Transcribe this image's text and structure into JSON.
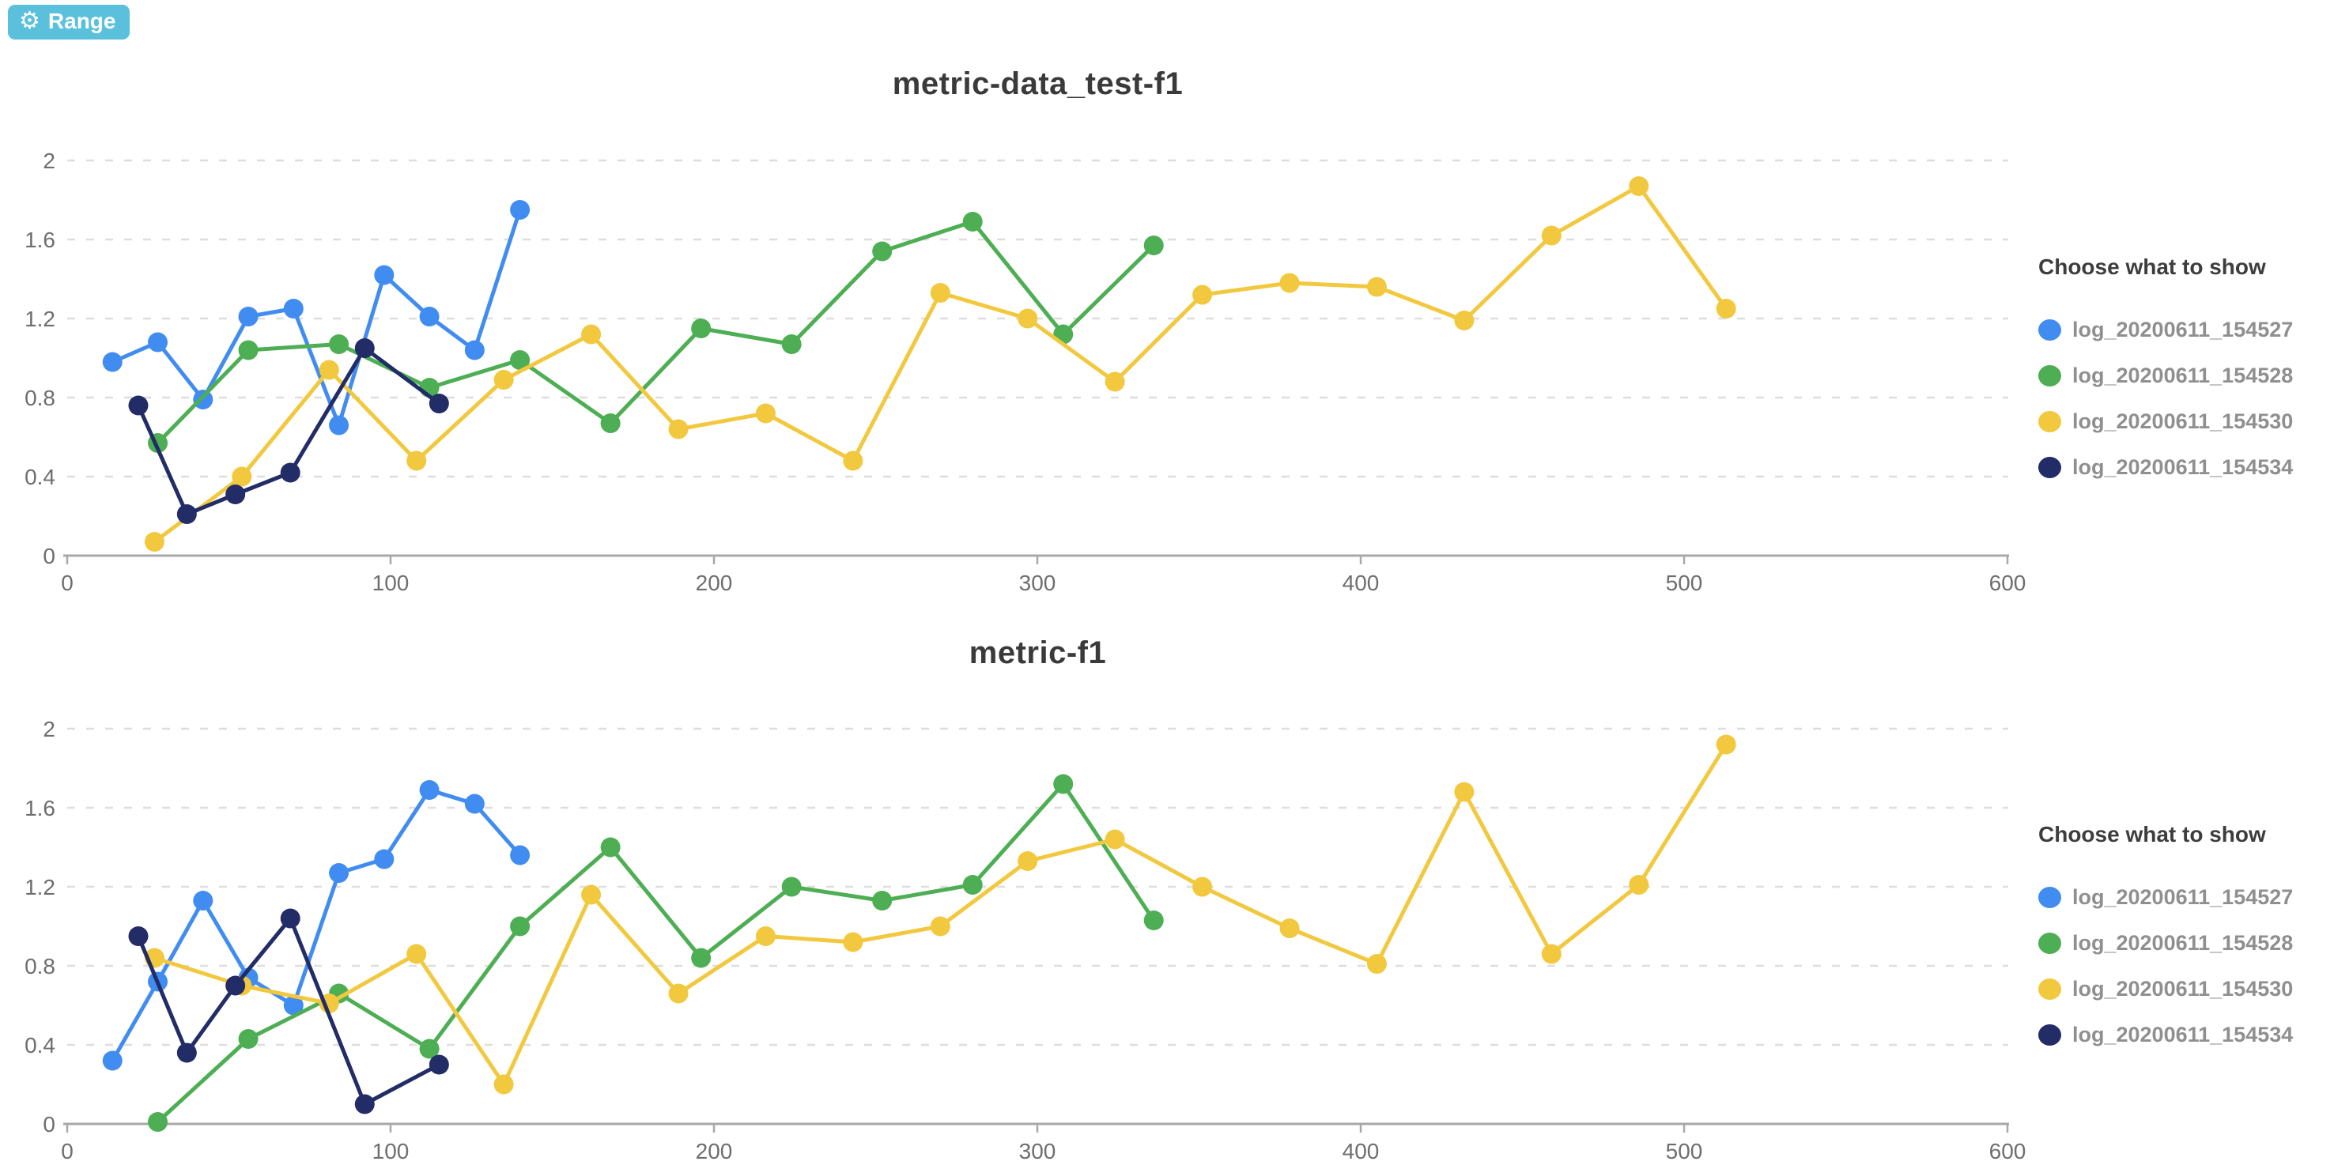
{
  "toolbar": {
    "range_label": "Range"
  },
  "legend": {
    "title": "Choose what to show"
  },
  "chart_data": {
    "type": "line",
    "xlim": [
      0,
      600
    ],
    "ylim": [
      0,
      2
    ],
    "xticks": [
      0,
      100,
      200,
      300,
      400,
      500,
      600
    ],
    "yticks": [
      0,
      0.4,
      0.8,
      1.2,
      1.6,
      2
    ],
    "ytick_labels": [
      "0",
      "0.4",
      "0.8",
      "1.2",
      "1.6",
      "2"
    ],
    "grid": true,
    "legend_position": "right",
    "colors": {
      "blue": "#418cf0",
      "green": "#4dae53",
      "yellow": "#f2c83f",
      "navy": "#222c66"
    },
    "charts": [
      {
        "title": "metric-data_test-f1",
        "series": [
          {
            "name": "log_20200611_154527",
            "color": "blue",
            "x": [
              14,
              28,
              42,
              56,
              70,
              84,
              98,
              112,
              126,
              140
            ],
            "y": [
              0.98,
              1.08,
              0.79,
              1.21,
              1.25,
              0.66,
              1.42,
              1.21,
              1.04,
              1.75
            ]
          },
          {
            "name": "log_20200611_154528",
            "color": "green",
            "x": [
              28,
              56,
              84,
              112,
              140,
              168,
              196,
              224,
              252,
              280,
              308,
              336
            ],
            "y": [
              0.57,
              1.04,
              1.07,
              0.85,
              0.99,
              0.67,
              1.15,
              1.07,
              1.54,
              1.69,
              1.12,
              1.57
            ]
          },
          {
            "name": "log_20200611_154530",
            "color": "yellow",
            "x": [
              27,
              54,
              81,
              108,
              135,
              162,
              189,
              216,
              243,
              270,
              297,
              324,
              351,
              378,
              405,
              432,
              459,
              486,
              513
            ],
            "y": [
              0.07,
              0.4,
              0.94,
              0.48,
              0.89,
              1.12,
              0.64,
              0.72,
              0.48,
              1.33,
              1.2,
              0.88,
              1.32,
              1.38,
              1.36,
              1.19,
              1.62,
              1.87,
              1.25
            ]
          },
          {
            "name": "log_20200611_154534",
            "color": "navy",
            "x": [
              22,
              37,
              52,
              69,
              92,
              115
            ],
            "y": [
              0.76,
              0.21,
              0.31,
              0.42,
              1.05,
              0.77
            ]
          }
        ]
      },
      {
        "title": "metric-f1",
        "series": [
          {
            "name": "log_20200611_154527",
            "color": "blue",
            "x": [
              14,
              28,
              42,
              56,
              70,
              84,
              98,
              112,
              126,
              140
            ],
            "y": [
              0.32,
              0.72,
              1.13,
              0.74,
              0.6,
              1.27,
              1.34,
              1.69,
              1.62,
              1.36
            ]
          },
          {
            "name": "log_20200611_154528",
            "color": "green",
            "x": [
              28,
              56,
              84,
              112,
              140,
              168,
              196,
              224,
              252,
              280,
              308,
              336
            ],
            "y": [
              0.01,
              0.43,
              0.66,
              0.38,
              1.0,
              1.4,
              0.84,
              1.2,
              1.13,
              1.21,
              1.72,
              1.03
            ]
          },
          {
            "name": "log_20200611_154530",
            "color": "yellow",
            "x": [
              27,
              54,
              81,
              108,
              135,
              162,
              189,
              216,
              243,
              270,
              297,
              324,
              351,
              378,
              405,
              432,
              459,
              486,
              513
            ],
            "y": [
              0.84,
              0.7,
              0.61,
              0.86,
              0.2,
              1.16,
              0.66,
              0.95,
              0.92,
              1.0,
              1.33,
              1.44,
              1.2,
              0.99,
              0.81,
              1.68,
              0.86,
              1.21,
              1.92
            ]
          },
          {
            "name": "log_20200611_154534",
            "color": "navy",
            "x": [
              22,
              37,
              52,
              69,
              92,
              115
            ],
            "y": [
              0.95,
              0.36,
              0.7,
              1.04,
              0.1,
              0.3
            ]
          }
        ]
      }
    ]
  }
}
